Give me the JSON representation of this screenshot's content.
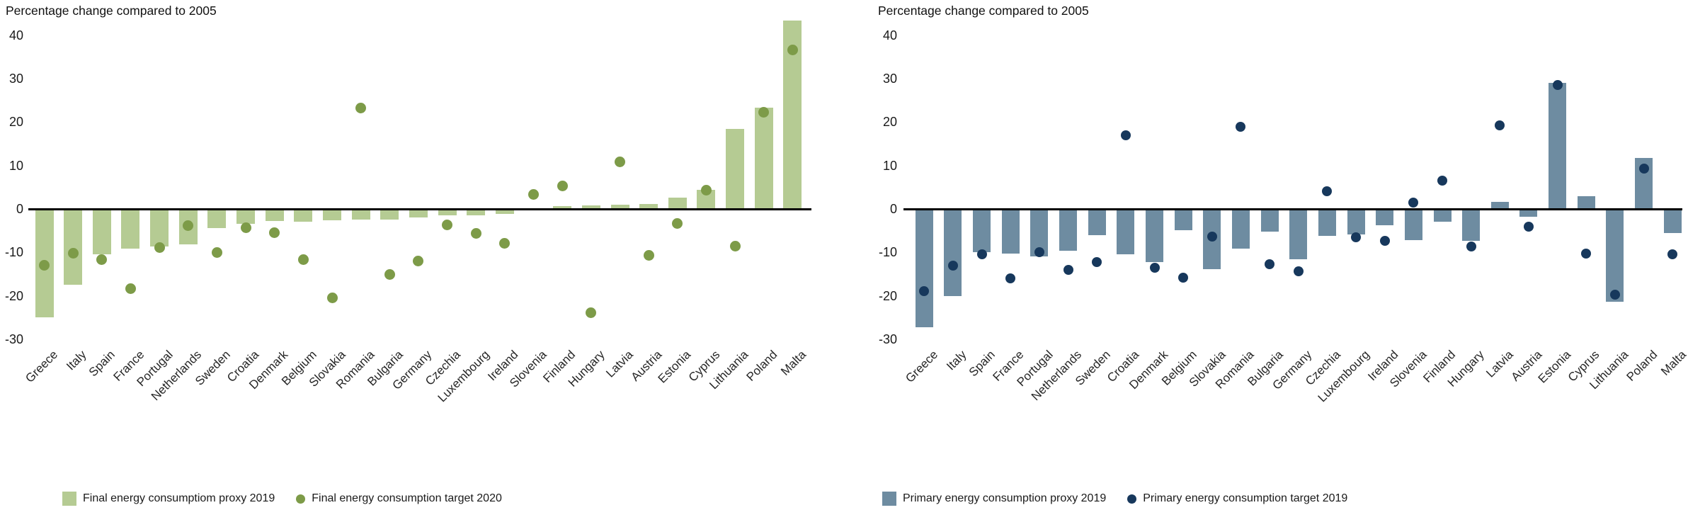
{
  "chart_data": [
    {
      "type": "bar",
      "title": "Percentage change compared to 2005",
      "ylabel": "Percentage change compared to 2005",
      "xlabel": "",
      "ylim": [
        -32,
        46
      ],
      "grid": false,
      "legend_position": "bottom",
      "y_ticks": [
        40,
        30,
        20,
        10,
        0,
        -10,
        -20,
        -30
      ],
      "categories": [
        "Greece",
        "Italy",
        "Spain",
        "France",
        "Portugal",
        "Netherlands",
        "Sweden",
        "Croatia",
        "Denmark",
        "Belgium",
        "Slovakia",
        "Romania",
        "Bulgaria",
        "Germany",
        "Czechia",
        "Luxembourg",
        "Ireland",
        "Slovenia",
        "Finland",
        "Hungary",
        "Latvia",
        "Austria",
        "Estonia",
        "Cyprus",
        "Lithuania",
        "Poland",
        "Malta"
      ],
      "series": [
        {
          "name": "Final energy consumptiom proxy 2019",
          "marker": "bar",
          "color": "#b5cb93",
          "values": [
            -25.0,
            -17.5,
            -10.5,
            -9.1,
            -8.6,
            -8.2,
            -4.4,
            -3.4,
            -2.8,
            -3.0,
            -2.6,
            -2.5,
            -2.4,
            -1.9,
            -1.5,
            -1.4,
            -1.2,
            0.0,
            0.6,
            0.8,
            1.0,
            1.1,
            2.6,
            4.4,
            18.4,
            23.4,
            43.4
          ]
        },
        {
          "name": "Final energy consumption target 2020",
          "marker": "dot",
          "color": "#7d9b48",
          "values": [
            -13.0,
            -10.2,
            -11.6,
            -18.4,
            -8.9,
            -3.9,
            -10.0,
            -4.3,
            -5.4,
            -11.6,
            -20.5,
            23.3,
            -15.1,
            -12.0,
            -3.6,
            -5.7,
            -7.9,
            3.4,
            5.3,
            -23.9,
            10.9,
            -10.7,
            -3.3,
            4.3,
            -8.5,
            22.3,
            36.6
          ]
        }
      ]
    },
    {
      "type": "bar",
      "title": "Percentage change compared to 2005",
      "ylabel": "Percentage change compared to 2005",
      "xlabel": "",
      "ylim": [
        -32,
        46
      ],
      "grid": false,
      "legend_position": "bottom",
      "y_ticks": [
        40,
        30,
        20,
        10,
        0,
        -10,
        -20,
        -30
      ],
      "categories": [
        "Greece",
        "Italy",
        "Spain",
        "France",
        "Portugal",
        "Netherlands",
        "Sweden",
        "Croatia",
        "Denmark",
        "Belgium",
        "Slovakia",
        "Romania",
        "Bulgaria",
        "Germany",
        "Czechia",
        "Luxembourg",
        "Ireland",
        "Slovenia",
        "Finland",
        "Hungary",
        "Latvia",
        "Austria",
        "Estonia",
        "Cyprus",
        "Lithuania",
        "Poland",
        "Malta"
      ],
      "series": [
        {
          "name": "Primary energy consumption proxy 2019",
          "marker": "bar",
          "color": "#6e8ca1",
          "values": [
            -27.2,
            -20.0,
            -10.0,
            -10.3,
            -11.0,
            -9.7,
            -6.1,
            -10.5,
            -12.2,
            -4.9,
            -13.8,
            -9.2,
            -5.2,
            -11.6,
            -6.2,
            -5.9,
            -3.7,
            -7.2,
            -3.0,
            -7.3,
            1.6,
            -1.8,
            29.0,
            3.0,
            -21.4,
            11.7,
            -5.5
          ]
        },
        {
          "name": "Primary energy consumption target 2019",
          "marker": "dot",
          "color": "#17385c",
          "values": [
            -19.0,
            -13.0,
            -10.5,
            -16.0,
            -10.0,
            -14.0,
            -12.3,
            17.0,
            -13.5,
            -15.8,
            -6.3,
            19.0,
            -12.7,
            -14.3,
            4.0,
            -6.5,
            -7.3,
            1.4,
            6.6,
            -8.7,
            19.3,
            -4.0,
            28.5,
            -10.2,
            -19.8,
            9.3,
            -10.5
          ]
        }
      ]
    }
  ]
}
